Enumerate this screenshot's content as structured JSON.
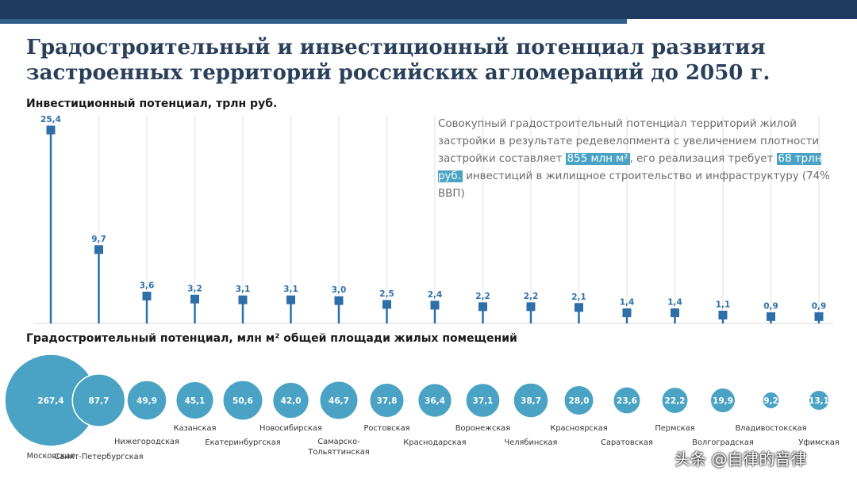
{
  "title": "Градостроительный и инвестиционный потенциал развития застроенных территорий российских агломераций до 2050 г.",
  "note": {
    "part1": "Совокупный градостроительный потенциал территорий жилой застройки в результате редевелопмента с увеличением плотности застройки составляет ",
    "highlight1": "855 млн м²",
    "part2": ", его реализация требует ",
    "highlight2": "68 трлн руб.",
    "part3": " инвестиций в жилищное строительство и инфраструктуру (74% ВВП)"
  },
  "watermark": "头条 @自律的音律",
  "colors": {
    "stem": "#2f6fa8",
    "bubble": "#4aa3c4",
    "grid": "#e6e6e6",
    "topbar": "#1e3a5f"
  },
  "chart_data": [
    {
      "type": "bar",
      "title": "Инвестиционный потенциал, трлн руб.",
      "categories": [
        "Московская",
        "Санкт-Петербургская",
        "Нижегородская",
        "Казанская",
        "Екатеринбургская",
        "Новосибирская",
        "Самарско-Тольяттинская",
        "Ростовская",
        "Краснодарская",
        "Воронежская",
        "Челябинская",
        "Красноярская",
        "Саратовская",
        "Пермская",
        "Волгоградская",
        "Владивостокская",
        "Уфимская"
      ],
      "values": [
        25.4,
        9.7,
        3.6,
        3.2,
        3.1,
        3.1,
        3.0,
        2.5,
        2.4,
        2.2,
        2.2,
        2.1,
        1.4,
        1.4,
        1.1,
        0.9,
        0.9
      ],
      "labels": [
        "25,4",
        "9,7",
        "3,6",
        "3,2",
        "3,1",
        "3,1",
        "3,0",
        "2,5",
        "2,4",
        "2,2",
        "2,2",
        "2,1",
        "1,4",
        "1,4",
        "1,1",
        "0,9",
        "0,9"
      ],
      "ylim": [
        0,
        25.4
      ],
      "grid": true
    },
    {
      "type": "scatter",
      "title": "Градостроительный потенциал, млн м² общей площади жилых помещений",
      "categories": [
        "Московская",
        "Санкт-Петербургская",
        "Нижегородская",
        "Казанская",
        "Екатеринбургская",
        "Новосибирская",
        "Самарско-Тольяттинская",
        "Ростовская",
        "Краснодарская",
        "Воронежская",
        "Челябинская",
        "Красноярская",
        "Саратовская",
        "Пермская",
        "Волгоградская",
        "Владивостокская",
        "Уфимская"
      ],
      "values": [
        267.4,
        87.7,
        49.9,
        45.1,
        50.6,
        42.0,
        46.7,
        37.8,
        36.4,
        37.1,
        38.7,
        28.0,
        23.6,
        22.2,
        19.9,
        9.2,
        13.1
      ],
      "labels": [
        "267,4",
        "87,7",
        "49,9",
        "45,1",
        "50,6",
        "42,0",
        "46,7",
        "37,8",
        "36,4",
        "37,1",
        "38,7",
        "28,0",
        "23,6",
        "22,2",
        "19,9",
        "9,2",
        "13,1"
      ]
    }
  ]
}
